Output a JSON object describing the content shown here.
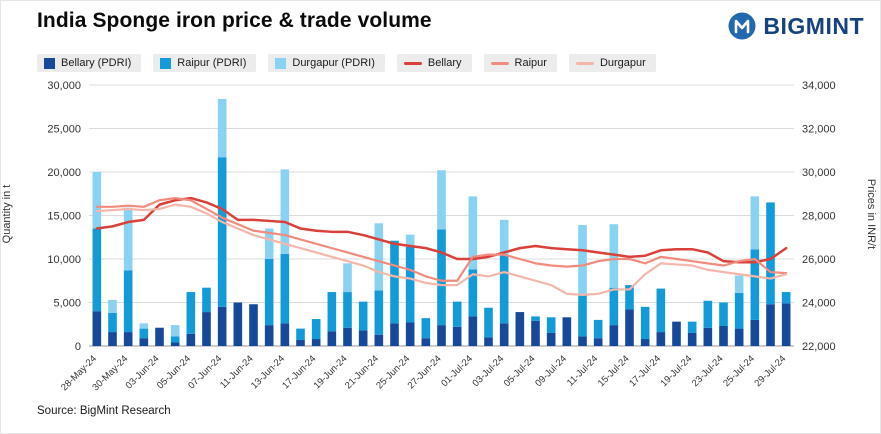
{
  "page": {
    "title": "India Sponge iron price & trade volume",
    "brand": "BIGMINT",
    "source": "Source: BigMint Research"
  },
  "chart_data": {
    "type": "combo-bar-line",
    "title": "India Sponge iron price & trade volume",
    "grid": true,
    "legend_position": "top",
    "x_label_every": 2,
    "categories": [
      "28-May-24",
      "29-May-24",
      "30-May-24",
      "31-May-24",
      "03-Jun-24",
      "04-Jun-24",
      "05-Jun-24",
      "06-Jun-24",
      "07-Jun-24",
      "10-Jun-24",
      "11-Jun-24",
      "12-Jun-24",
      "13-Jun-24",
      "14-Jun-24",
      "17-Jun-24",
      "18-Jun-24",
      "19-Jun-24",
      "20-Jun-24",
      "21-Jun-24",
      "24-Jun-24",
      "25-Jun-24",
      "26-Jun-24",
      "27-Jun-24",
      "28-Jun-24",
      "01-Jul-24",
      "02-Jul-24",
      "03-Jul-24",
      "04-Jul-24",
      "05-Jul-24",
      "08-Jul-24",
      "09-Jul-24",
      "10-Jul-24",
      "11-Jul-24",
      "12-Jul-24",
      "15-Jul-24",
      "16-Jul-24",
      "17-Jul-24",
      "18-Jul-24",
      "19-Jul-24",
      "22-Jul-24",
      "23-Jul-24",
      "24-Jul-24",
      "25-Jul-24",
      "26-Jul-24",
      "29-Jul-24"
    ],
    "left_axis": {
      "label": "Quantity in t",
      "min": 0,
      "max": 30000,
      "step": 5000
    },
    "right_axis": {
      "label": "Prices in INR/t",
      "min": 22000,
      "max": 34000,
      "step": 2000
    },
    "bar_series": [
      {
        "name": "Bellary (PDRI)",
        "color": "#17499b",
        "values": [
          4000,
          1600,
          1600,
          900,
          2100,
          400,
          1400,
          3900,
          4500,
          5000,
          4800,
          2400,
          2600,
          700,
          800,
          1700,
          2100,
          1800,
          1300,
          2600,
          2700,
          900,
          2400,
          2200,
          3400,
          1000,
          2600,
          3900,
          2900,
          1500,
          3300,
          1100,
          900,
          2400,
          4200,
          800,
          1600,
          2800,
          1500,
          2100,
          2300,
          2000,
          3000,
          4800,
          4900
        ]
      },
      {
        "name": "Raipur (PDRI)",
        "color": "#129bd8",
        "values": [
          9500,
          2200,
          7100,
          1100,
          0,
          700,
          4800,
          2800,
          17200,
          0,
          0,
          7600,
          8000,
          1300,
          2300,
          4500,
          4100,
          3300,
          5100,
          9500,
          8700,
          2300,
          11000,
          2900,
          5400,
          3400,
          7900,
          0,
          500,
          1800,
          0,
          4900,
          2100,
          4300,
          2800,
          3700,
          5000,
          0,
          1300,
          3100,
          2700,
          4100,
          8100,
          11700,
          1300
        ]
      },
      {
        "name": "Durgapur (PDRI)",
        "color": "#8ad2f2",
        "values": [
          6500,
          1500,
          7200,
          600,
          0,
          1300,
          0,
          0,
          6700,
          0,
          0,
          3500,
          9700,
          0,
          0,
          0,
          3300,
          0,
          7700,
          0,
          1400,
          0,
          6800,
          0,
          8400,
          0,
          4000,
          0,
          0,
          0,
          0,
          7900,
          0,
          7300,
          0,
          0,
          0,
          0,
          0,
          0,
          0,
          2000,
          6100,
          0,
          0
        ]
      }
    ],
    "line_series": [
      {
        "name": "Bellary",
        "color": "#d9403a",
        "values": [
          27400,
          27500,
          27700,
          27800,
          28500,
          28700,
          28800,
          28600,
          28300,
          27800,
          27800,
          27750,
          27700,
          27400,
          27300,
          27250,
          27250,
          27100,
          26900,
          26700,
          26600,
          26500,
          26300,
          26000,
          26000,
          26100,
          26300,
          26500,
          26600,
          26500,
          26450,
          26400,
          26300,
          26200,
          26100,
          26150,
          26400,
          26450,
          26450,
          26300,
          25900,
          25850,
          25850,
          26000,
          26500
        ]
      },
      {
        "name": "Raipur",
        "color": "#f08b7d",
        "values": [
          28400,
          28400,
          28450,
          28400,
          28700,
          28800,
          28700,
          28300,
          27900,
          27600,
          27300,
          27200,
          27100,
          26900,
          26700,
          26500,
          26300,
          26100,
          25900,
          25700,
          25500,
          25200,
          25000,
          25000,
          26100,
          26200,
          26200,
          26000,
          25800,
          25700,
          25650,
          25700,
          25900,
          26000,
          26000,
          25800,
          26100,
          26000,
          25900,
          25800,
          25700,
          25900,
          26000,
          25400,
          25350
        ]
      },
      {
        "name": "Durgapur",
        "color": "#f4b6aa",
        "values": [
          28200,
          28250,
          28300,
          28250,
          28300,
          28500,
          28400,
          28100,
          27700,
          27400,
          27100,
          26900,
          26700,
          26500,
          26300,
          26100,
          25900,
          25700,
          25400,
          25200,
          25100,
          24900,
          24800,
          24800,
          25300,
          25200,
          25400,
          25200,
          25000,
          24800,
          24400,
          24350,
          24400,
          24600,
          24600,
          25300,
          25800,
          25750,
          25700,
          25500,
          25400,
          25300,
          25200,
          25100,
          25300
        ]
      }
    ]
  }
}
